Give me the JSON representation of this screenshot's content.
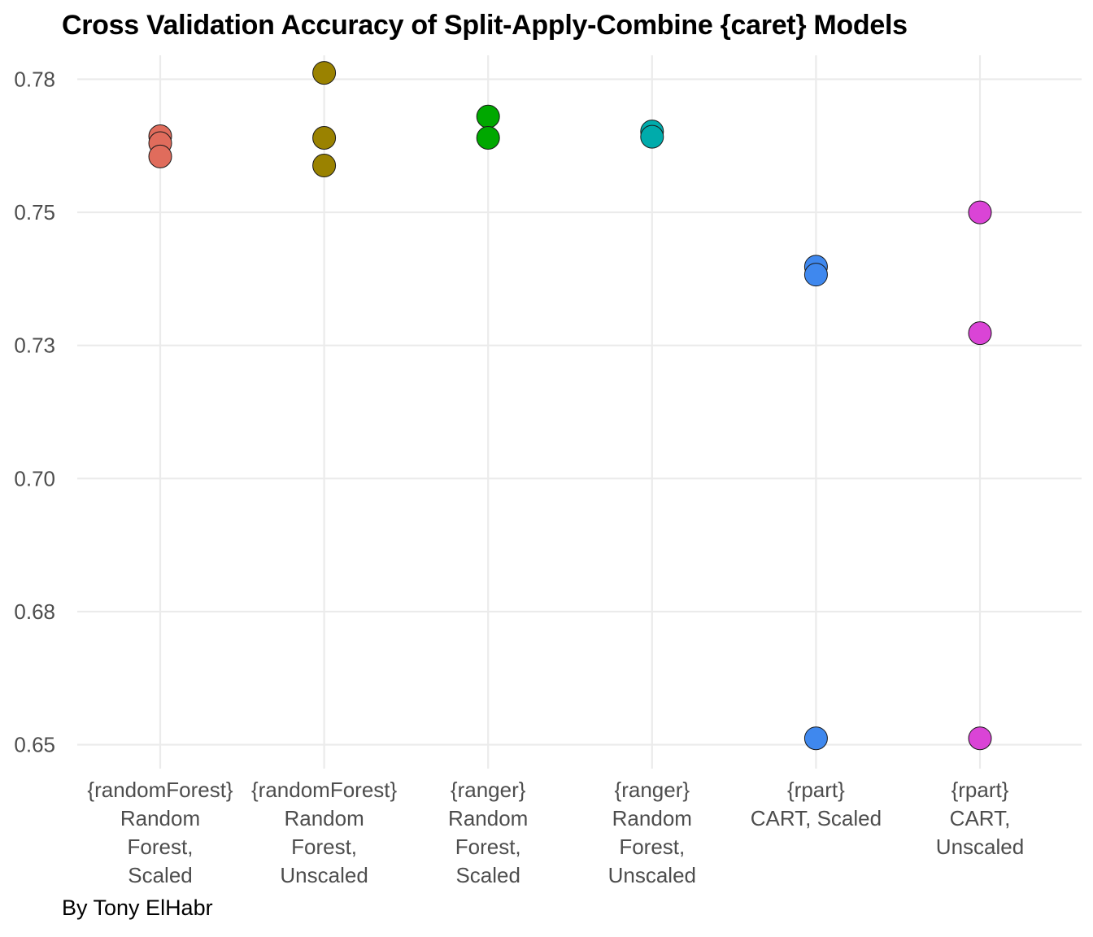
{
  "chart_data": {
    "type": "scatter",
    "title": "Cross Validation Accuracy of Split-Apply-Combine {caret} Models",
    "caption": "By Tony ElHabr",
    "xlabel": "",
    "ylabel": "",
    "ylim": [
      0.6455,
      0.7795
    ],
    "y_ticks": [
      0.65,
      0.675,
      0.7,
      0.725,
      0.75,
      0.775
    ],
    "y_tick_labels": [
      "0.65",
      "0.68",
      "0.70",
      "0.73",
      "0.75",
      "0.78"
    ],
    "grid": true,
    "categories": [
      {
        "lines": [
          "{randomForest}",
          "Random",
          "Forest,",
          "Scaled"
        ]
      },
      {
        "lines": [
          "{randomForest}",
          "Random",
          "Forest,",
          "Unscaled"
        ]
      },
      {
        "lines": [
          "{ranger}",
          "Random",
          "Forest,",
          "Scaled"
        ]
      },
      {
        "lines": [
          "{ranger}",
          "Random",
          "Forest,",
          "Unscaled"
        ]
      },
      {
        "lines": [
          "{rpart}",
          "CART, Scaled"
        ]
      },
      {
        "lines": [
          "{rpart}",
          "CART,",
          "Unscaled"
        ]
      }
    ],
    "series": [
      {
        "name": "{randomForest} Random Forest, Scaled",
        "color": "#E06C5C",
        "values": [
          0.7643,
          0.763,
          0.7605
        ]
      },
      {
        "name": "{randomForest} Random Forest, Unscaled",
        "color": "#9A8200",
        "values": [
          0.7762,
          0.764,
          0.7588
        ]
      },
      {
        "name": "{ranger} Random Forest, Scaled",
        "color": "#00A800",
        "values": [
          0.768,
          0.764
        ]
      },
      {
        "name": "{ranger} Random Forest, Unscaled",
        "color": "#00ABAB",
        "values": [
          0.7652,
          0.7642
        ]
      },
      {
        "name": "{rpart} CART, Scaled",
        "color": "#3F88EE",
        "values": [
          0.7398,
          0.7383,
          0.6512
        ]
      },
      {
        "name": "{rpart} CART, Unscaled",
        "color": "#DA44D6",
        "values": [
          0.75,
          0.7273,
          0.6512
        ]
      }
    ]
  }
}
